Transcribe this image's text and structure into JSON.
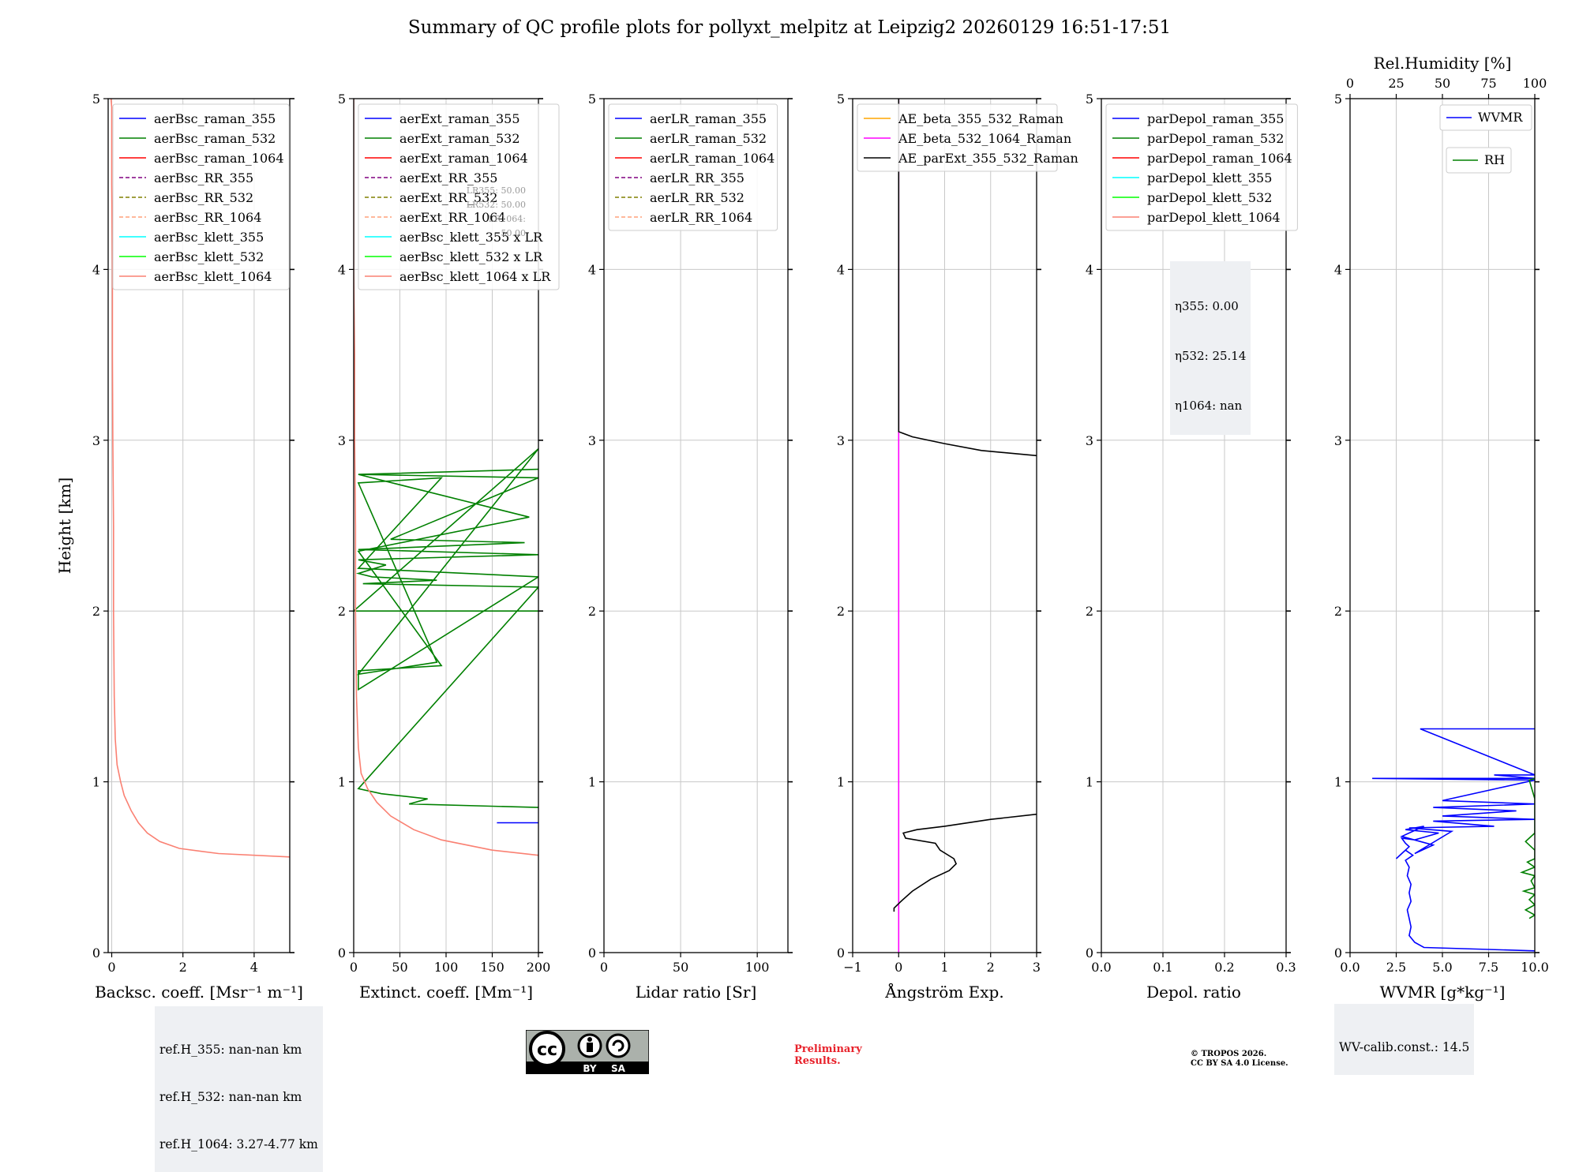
{
  "title": "Summary of QC profile plots for pollyxt_melpitz at Leipzig2 20260129 16:51-17:51",
  "colors": {
    "raman_355": "#0000ff",
    "raman_532": "#008000",
    "raman_1064": "#ff0000",
    "rr_355": "#800080",
    "rr_532": "#808000",
    "rr_1064": "#ffa07a",
    "klett_355": "#00ffff",
    "klett_532": "#00ff00",
    "klett_1064": "#fa8072",
    "orange": "#ffa500",
    "magenta": "#ff00ff",
    "black": "#000000",
    "grid": "#c8c8c8",
    "infobox_bg": "#eef0f3"
  },
  "info": {
    "refH_355": "ref.H_355: nan-nan km",
    "refH_532": "ref.H_532: nan-nan km",
    "refH_1064": "ref.H_1064: 3.27-4.77 km",
    "eta_355": "η355: 0.00",
    "eta_532": "η532: 25.14",
    "eta_1064": "η1064: nan",
    "wv_calib": "WV-calib.const.: 14.5",
    "lr_355": "LR355: 50.00",
    "lr_532": "LR532: 50.00",
    "lr_1064": "LR1064: 50.00"
  },
  "footer": {
    "preliminary_1": "Preliminary",
    "preliminary_2": "Results.",
    "copyright_1": "© TROPOS 2026.",
    "copyright_2": "CC BY SA 4.0 License.",
    "cc_label": "cc",
    "by_label": "BY",
    "sa_label": "SA"
  },
  "chart_data": [
    {
      "type": "line",
      "name": "backscatter",
      "xlabel": "Backsc. coeff. [Msr⁻¹ m⁻¹]",
      "ylabel": "Height [km]",
      "xlim": [
        -0.1,
        5
      ],
      "ylim": [
        0,
        5
      ],
      "xticks": [
        0,
        2,
        4
      ],
      "yticks": [
        0,
        1,
        2,
        3,
        4,
        5
      ],
      "legend": [
        "aerBsc_raman_355",
        "aerBsc_raman_532",
        "aerBsc_raman_1064",
        "aerBsc_RR_355",
        "aerBsc_RR_532",
        "aerBsc_RR_1064",
        "aerBsc_klett_355",
        "aerBsc_klett_532",
        "aerBsc_klett_1064"
      ],
      "legend_styles": [
        "raman_355",
        "raman_532",
        "raman_1064",
        "rr_355",
        "rr_532",
        "rr_1064",
        "klett_355",
        "klett_532",
        "klett_1064"
      ],
      "legend_dashed": [
        false,
        false,
        false,
        true,
        true,
        true,
        false,
        false,
        false
      ],
      "legend_pos": "top-left",
      "series": [
        {
          "name": "aerBsc_klett_1064",
          "color": "klett_1064",
          "x": [
            5.0,
            3.0,
            1.9,
            1.35,
            1.0,
            0.75,
            0.55,
            0.35,
            0.25,
            0.15,
            0.1,
            0.07,
            0.05,
            0.05,
            0.03,
            0.02,
            0.02,
            0.0,
            0.0,
            0.0,
            -0.02
          ],
          "y": [
            0.56,
            0.58,
            0.61,
            0.65,
            0.7,
            0.76,
            0.83,
            0.92,
            1.0,
            1.1,
            1.25,
            1.5,
            2.0,
            2.5,
            3.0,
            3.5,
            4.0,
            4.5,
            4.8,
            4.95,
            5.0
          ]
        }
      ]
    },
    {
      "type": "line",
      "name": "extinction",
      "xlabel": "Extinct. coeff. [Mm⁻¹]",
      "xlim": [
        0,
        200
      ],
      "ylim": [
        0,
        5
      ],
      "xticks": [
        0,
        50,
        100,
        150,
        200
      ],
      "yticks": [
        0,
        1,
        2,
        3,
        4,
        5
      ],
      "legend": [
        "aerExt_raman_355",
        "aerExt_raman_532",
        "aerExt_raman_1064",
        "aerExt_RR_355",
        "aerExt_RR_532",
        "aerExt_RR_1064",
        "aerBsc_klett_355 x LR",
        "aerBsc_klett_532 x LR",
        "aerBsc_klett_1064 x LR"
      ],
      "legend_styles": [
        "raman_355",
        "raman_532",
        "raman_1064",
        "rr_355",
        "rr_532",
        "rr_1064",
        "klett_355",
        "klett_532",
        "klett_1064"
      ],
      "legend_dashed": [
        false,
        false,
        false,
        true,
        true,
        true,
        false,
        false,
        false
      ],
      "legend_pos": "top-left",
      "series": [
        {
          "name": "aerExt_raman_532",
          "color": "raman_532",
          "x": [
            200,
            60,
            80,
            30,
            5,
            200,
            10,
            90,
            20,
            5,
            35,
            5,
            200,
            5,
            185,
            40,
            200,
            5,
            200,
            5,
            190,
            5,
            95,
            5,
            5,
            200,
            5,
            95,
            5,
            90,
            5,
            200,
            0,
            200
          ],
          "y": [
            0.85,
            0.87,
            0.9,
            0.93,
            0.96,
            2.14,
            2.16,
            2.18,
            2.2,
            2.22,
            2.27,
            2.3,
            2.33,
            2.36,
            2.4,
            2.42,
            2.78,
            2.8,
            2.83,
            2.8,
            2.55,
            2.35,
            1.68,
            1.65,
            1.54,
            2.2,
            2.25,
            2.78,
            2.75,
            1.7,
            1.63,
            2.95,
            2.0,
            2.0
          ]
        },
        {
          "name": "aerExt_raman_355",
          "color": "raman_355",
          "x": [
            155,
            200
          ],
          "y": [
            0.76,
            0.76
          ]
        },
        {
          "name": "aerBsc_klett_1064 x LR",
          "color": "klett_1064",
          "x": [
            200,
            150,
            95,
            65,
            40,
            25,
            15,
            8,
            5,
            3,
            2,
            2,
            1,
            1,
            0,
            0
          ],
          "y": [
            0.57,
            0.6,
            0.66,
            0.72,
            0.8,
            0.88,
            0.96,
            1.05,
            1.2,
            1.5,
            2.0,
            2.5,
            3.0,
            3.5,
            4.0,
            5.0
          ]
        }
      ]
    },
    {
      "type": "line",
      "name": "lidar_ratio",
      "xlabel": "Lidar ratio [Sr]",
      "xlim": [
        0,
        120
      ],
      "ylim": [
        0,
        5
      ],
      "xticks": [
        0,
        50,
        100
      ],
      "yticks": [
        0,
        1,
        2,
        3,
        4,
        5
      ],
      "legend": [
        "aerLR_raman_355",
        "aerLR_raman_532",
        "aerLR_raman_1064",
        "aerLR_RR_355",
        "aerLR_RR_532",
        "aerLR_RR_1064"
      ],
      "legend_styles": [
        "raman_355",
        "raman_532",
        "raman_1064",
        "rr_355",
        "rr_532",
        "rr_1064"
      ],
      "legend_dashed": [
        false,
        false,
        false,
        true,
        true,
        true
      ],
      "legend_pos": "top-left",
      "series": []
    },
    {
      "type": "line",
      "name": "angstrom",
      "xlabel": "Ångström Exp.",
      "xlim": [
        -1,
        3
      ],
      "ylim": [
        0,
        5
      ],
      "xticks": [
        -1,
        0,
        1,
        2,
        3
      ],
      "yticks": [
        0,
        1,
        2,
        3,
        4,
        5
      ],
      "legend": [
        "AE_beta_355_532_Raman",
        "AE_beta_532_1064_Raman",
        "AE_parExt_355_532_Raman"
      ],
      "legend_styles": [
        "orange",
        "magenta",
        "black"
      ],
      "legend_dashed": [
        false,
        false,
        false
      ],
      "legend_pos": "top-left",
      "series": [
        {
          "name": "AE_beta_532_1064_Raman",
          "color": "magenta",
          "x": [
            0,
            0
          ],
          "y": [
            0,
            5
          ]
        },
        {
          "name": "AE_parExt_355_532_Raman (upper)",
          "color": "black",
          "x": [
            0,
            0,
            0.3,
            1.0,
            1.8,
            3.0
          ],
          "y": [
            5,
            3.05,
            3.02,
            2.98,
            2.94,
            2.91
          ]
        },
        {
          "name": "AE_parExt_355_532_Raman (lower)",
          "color": "black",
          "x": [
            3.0,
            2.0,
            1.0,
            0.4,
            0.1,
            0.15,
            0.8,
            0.9,
            1.2,
            1.25,
            1.1,
            0.7,
            0.3,
            0.05,
            -0.1,
            -0.1
          ],
          "y": [
            0.81,
            0.78,
            0.74,
            0.72,
            0.7,
            0.67,
            0.64,
            0.6,
            0.55,
            0.52,
            0.48,
            0.43,
            0.36,
            0.3,
            0.26,
            0.24
          ]
        }
      ]
    },
    {
      "type": "line",
      "name": "depol",
      "xlabel": "Depol. ratio",
      "xlim": [
        0,
        0.3
      ],
      "ylim": [
        0,
        5
      ],
      "xticks": [
        0.0,
        0.1,
        0.2,
        0.3
      ],
      "yticks": [
        0,
        1,
        2,
        3,
        4,
        5
      ],
      "legend": [
        "parDepol_raman_355",
        "parDepol_raman_532",
        "parDepol_raman_1064",
        "parDepol_klett_355",
        "parDepol_klett_532",
        "parDepol_klett_1064"
      ],
      "legend_styles": [
        "raman_355",
        "raman_532",
        "raman_1064",
        "klett_355",
        "klett_532",
        "klett_1064"
      ],
      "legend_dashed": [
        false,
        false,
        false,
        false,
        false,
        false
      ],
      "legend_pos": "top-left",
      "series": []
    },
    {
      "type": "line",
      "name": "wvmr",
      "xlabel": "WVMR [g*kg⁻¹]",
      "x2label": "Rel.Humidity [%]",
      "xlim": [
        0,
        10
      ],
      "x2lim": [
        0,
        100
      ],
      "ylim": [
        0,
        5
      ],
      "xticks": [
        0.0,
        2.5,
        5.0,
        7.5,
        10.0
      ],
      "x2ticks": [
        0,
        25,
        50,
        75,
        100
      ],
      "yticks": [
        0,
        1,
        2,
        3,
        4,
        5
      ],
      "legend": [
        "WVMR",
        "RH"
      ],
      "legend_styles": [
        "raman_355",
        "raman_532"
      ],
      "legend_dashed": [
        false,
        false
      ],
      "legend_pos": "top-right",
      "series": [
        {
          "name": "WVMR",
          "color": "raman_355",
          "x": [
            10.0,
            4.0,
            3.5,
            3.2,
            3.3,
            3.2,
            3.1,
            3.3,
            3.2,
            3.3,
            3.1,
            3.2,
            3.0,
            3.4,
            3.0,
            2.5,
            3.2,
            3.0,
            2.8,
            3.5,
            4.8,
            3.0,
            4.0,
            2.8,
            4.5,
            3.5,
            5.5,
            3.2,
            7.8,
            4.5,
            10.0,
            5.0,
            9.0,
            4.5,
            10.0,
            5.0,
            10.0,
            1.2,
            10.0,
            7.8,
            10.0,
            3.8,
            10.0
          ],
          "y": [
            0.01,
            0.03,
            0.06,
            0.1,
            0.15,
            0.2,
            0.25,
            0.3,
            0.35,
            0.4,
            0.45,
            0.5,
            0.54,
            0.57,
            0.6,
            0.55,
            0.62,
            0.64,
            0.67,
            0.66,
            0.7,
            0.72,
            0.74,
            0.68,
            0.63,
            0.58,
            0.71,
            0.73,
            0.74,
            0.77,
            0.78,
            0.8,
            0.83,
            0.85,
            0.87,
            0.89,
            1.01,
            1.02,
            1.02,
            1.04,
            1.04,
            1.31,
            1.31
          ]
        },
        {
          "name": "RH",
          "color": "raman_532",
          "x": [
            97,
            100,
            95,
            100,
            97,
            100,
            94,
            100,
            98,
            100,
            93,
            100,
            96,
            100,
            100,
            95,
            100,
            100,
            100,
            97,
            100
          ],
          "y": [
            0.2,
            0.22,
            0.25,
            0.28,
            0.31,
            0.34,
            0.36,
            0.38,
            0.42,
            0.45,
            0.47,
            0.5,
            0.53,
            0.55,
            0.6,
            0.65,
            0.7,
            0.8,
            0.9,
            1.01,
            1.02
          ]
        }
      ]
    }
  ]
}
